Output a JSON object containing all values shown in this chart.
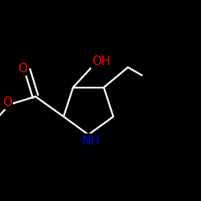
{
  "background_color": "#000000",
  "bond_color": "#ffffff",
  "atom_colors": {
    "O": "#ff0000",
    "N": "#0000cc",
    "C": "#ffffff",
    "H": "#ffffff"
  },
  "figsize": [
    2.5,
    2.5
  ],
  "dpi": 100,
  "line_width": 1.6,
  "font_size": 11
}
